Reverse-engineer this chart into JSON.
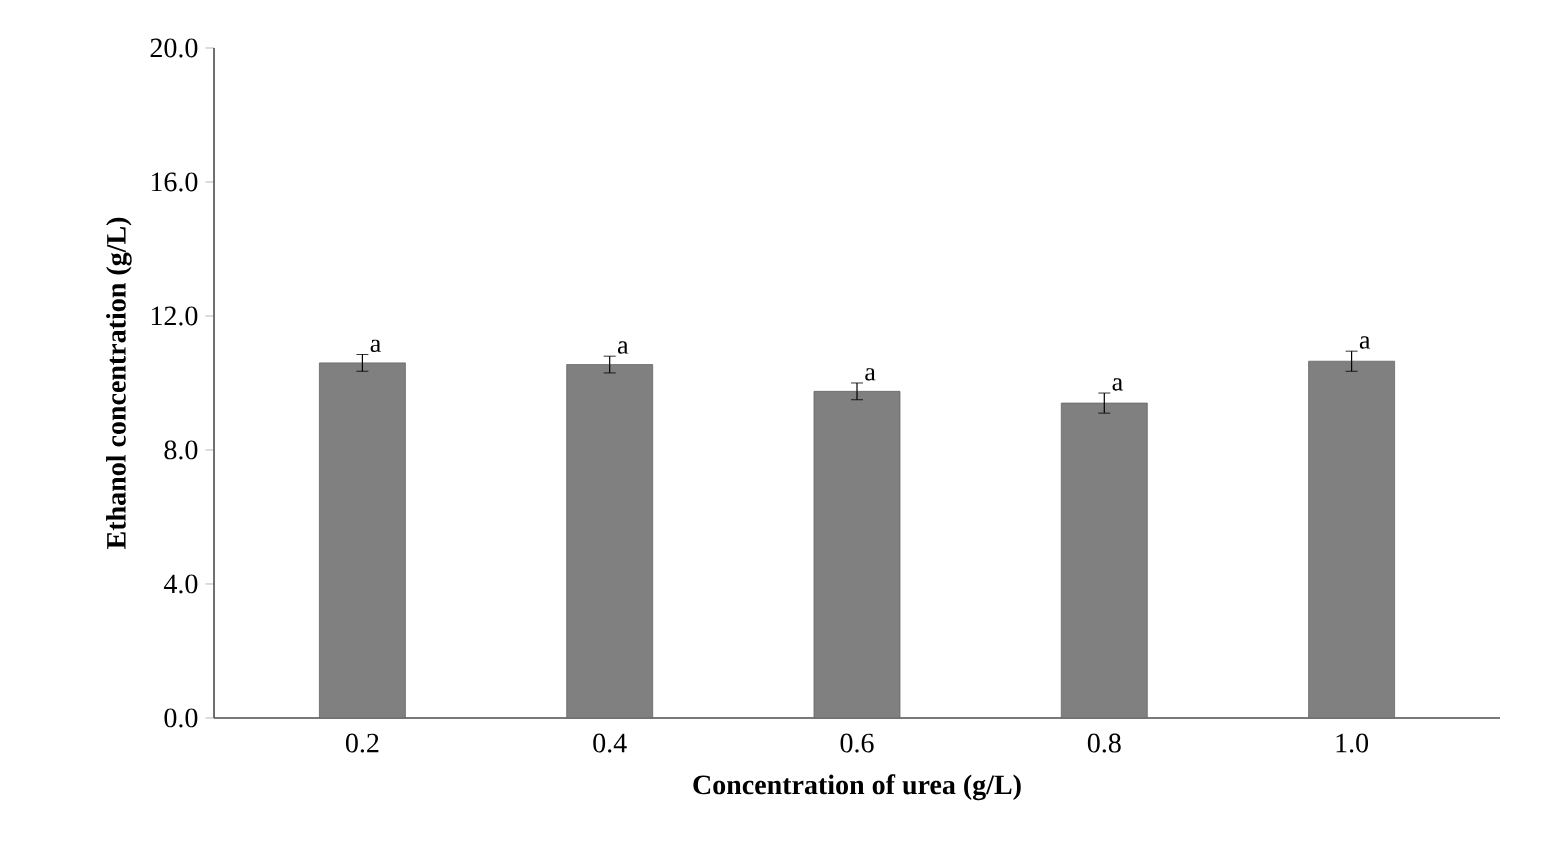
{
  "chart_data": {
    "type": "bar",
    "xlabel": "Concentration of urea (g/L)",
    "ylabel": "Ethanol concentration (g/L)",
    "categories": [
      "0.2",
      "0.4",
      "0.6",
      "0.8",
      "1.0"
    ],
    "values": [
      10.6,
      10.55,
      9.75,
      9.4,
      10.65
    ],
    "errors": [
      0.25,
      0.25,
      0.25,
      0.3,
      0.3
    ],
    "color": "#808080",
    "ylim": [
      0,
      20
    ],
    "yticks": [
      {
        "value": 0,
        "label": "0.0"
      },
      {
        "value": 4,
        "label": "4.0"
      },
      {
        "value": 8,
        "label": "8.0"
      },
      {
        "value": 12,
        "label": "12.0"
      },
      {
        "value": 16,
        "label": "16.0"
      },
      {
        "value": 20,
        "label": "20.0"
      }
    ],
    "annotations": [
      {
        "text": "a",
        "x": "0.2",
        "y": 10.85
      },
      {
        "text": "a",
        "x": "0.4",
        "y": 10.8
      },
      {
        "text": "a",
        "x": "0.6",
        "y": 10.0
      },
      {
        "text": "a",
        "x": "0.8",
        "y": 9.7
      },
      {
        "text": "a",
        "x": "1.0",
        "y": 10.95
      }
    ],
    "grid": false
  }
}
